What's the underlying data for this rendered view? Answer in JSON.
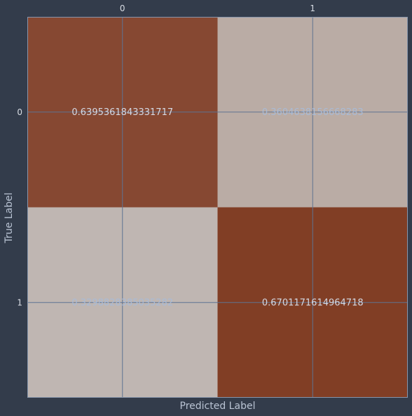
{
  "chart_data": {
    "type": "heatmap",
    "title": "",
    "xlabel": "Predicted Label",
    "ylabel": "True Label",
    "x_categories": [
      "0",
      "1"
    ],
    "y_categories": [
      "0",
      "1"
    ],
    "values": [
      [
        0.6395361843331717,
        0.3604638156668283
      ],
      [
        0.3298828385035282,
        0.6701171614964718
      ]
    ],
    "cell_labels": [
      [
        "0.6395361843331717",
        "0.3604638156668283"
      ],
      [
        "0.3298828385035282",
        "0.6701171614964718"
      ]
    ],
    "colormap": {
      "low": "#c5c1be",
      "high": "#7b3319"
    },
    "label_colors": {
      "on_dark": "#d4d9e4",
      "on_light": "#a9bbd6"
    },
    "grid": true,
    "grid_color": "#5f7391",
    "x_ticks_position": "top"
  }
}
